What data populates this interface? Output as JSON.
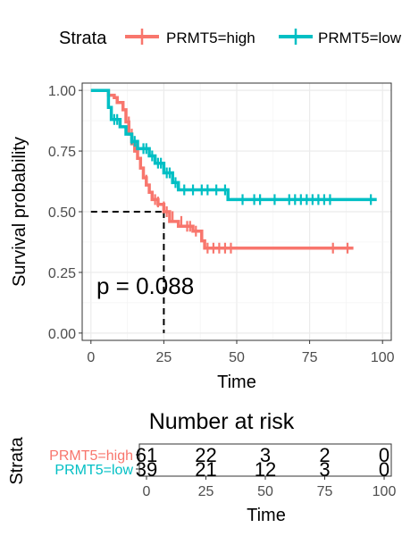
{
  "chart_data": [
    {
      "type": "line",
      "subtype": "kaplan-meier",
      "xlabel": "Time",
      "ylabel": "Survival probability",
      "xlim": [
        -3,
        103
      ],
      "ylim": [
        -0.03,
        1.03
      ],
      "xticks": [
        "0",
        "25",
        "50",
        "75",
        "100"
      ],
      "xtick_values": [
        0,
        25,
        50,
        75,
        100
      ],
      "yticks": [
        "0.00",
        "0.25",
        "0.50",
        "0.75",
        "1.00"
      ],
      "ytick_values": [
        0,
        0.25,
        0.5,
        0.75,
        1.0
      ],
      "grid": true,
      "legend": {
        "title": "Strata",
        "position": "top"
      },
      "annotation": "p = 0.088",
      "median_survival": {
        "y": 0.5,
        "x": 25
      },
      "series": [
        {
          "name": "PRMT5=high",
          "color": "#F8766D",
          "steps": [
            [
              0,
              1.0
            ],
            [
              6,
              1.0
            ],
            [
              6,
              0.98
            ],
            [
              8,
              0.98
            ],
            [
              8,
              0.97
            ],
            [
              9,
              0.97
            ],
            [
              9,
              0.95
            ],
            [
              11,
              0.95
            ],
            [
              11,
              0.92
            ],
            [
              12,
              0.92
            ],
            [
              12,
              0.87
            ],
            [
              13,
              0.87
            ],
            [
              13,
              0.82
            ],
            [
              14,
              0.82
            ],
            [
              14,
              0.78
            ],
            [
              15,
              0.78
            ],
            [
              15,
              0.75
            ],
            [
              16,
              0.75
            ],
            [
              16,
              0.72
            ],
            [
              17,
              0.72
            ],
            [
              17,
              0.68
            ],
            [
              18,
              0.68
            ],
            [
              18,
              0.64
            ],
            [
              19,
              0.64
            ],
            [
              19,
              0.61
            ],
            [
              20,
              0.61
            ],
            [
              20,
              0.58
            ],
            [
              21,
              0.58
            ],
            [
              21,
              0.55
            ],
            [
              23,
              0.55
            ],
            [
              23,
              0.53
            ],
            [
              25,
              0.53
            ],
            [
              25,
              0.5
            ],
            [
              27,
              0.5
            ],
            [
              27,
              0.46
            ],
            [
              30,
              0.46
            ],
            [
              30,
              0.44
            ],
            [
              35,
              0.44
            ],
            [
              35,
              0.42
            ],
            [
              38,
              0.42
            ],
            [
              38,
              0.38
            ],
            [
              39,
              0.38
            ],
            [
              39,
              0.35
            ],
            [
              90,
              0.35
            ]
          ],
          "censor": [
            [
              13,
              0.87
            ],
            [
              14,
              0.82
            ],
            [
              15,
              0.77
            ],
            [
              17,
              0.7
            ],
            [
              19,
              0.63
            ],
            [
              22,
              0.55
            ],
            [
              23,
              0.54
            ],
            [
              25,
              0.52
            ],
            [
              26,
              0.5
            ],
            [
              28,
              0.48
            ],
            [
              31,
              0.46
            ],
            [
              33,
              0.44
            ],
            [
              34,
              0.44
            ],
            [
              36,
              0.42
            ],
            [
              40,
              0.35
            ],
            [
              42,
              0.35
            ],
            [
              44,
              0.35
            ],
            [
              46,
              0.35
            ],
            [
              48,
              0.35
            ],
            [
              83,
              0.35
            ],
            [
              88,
              0.35
            ]
          ],
          "at_risk": [
            61,
            22,
            3,
            2,
            0
          ]
        },
        {
          "name": "PRMT5=low",
          "color": "#00BFC4",
          "steps": [
            [
              0,
              1.0
            ],
            [
              6,
              1.0
            ],
            [
              6,
              0.93
            ],
            [
              7,
              0.93
            ],
            [
              7,
              0.88
            ],
            [
              10,
              0.88
            ],
            [
              10,
              0.85
            ],
            [
              12,
              0.85
            ],
            [
              12,
              0.82
            ],
            [
              14,
              0.82
            ],
            [
              14,
              0.79
            ],
            [
              16,
              0.79
            ],
            [
              16,
              0.76
            ],
            [
              20,
              0.76
            ],
            [
              20,
              0.73
            ],
            [
              22,
              0.73
            ],
            [
              22,
              0.7
            ],
            [
              25,
              0.7
            ],
            [
              25,
              0.66
            ],
            [
              28,
              0.66
            ],
            [
              28,
              0.62
            ],
            [
              30,
              0.62
            ],
            [
              30,
              0.59
            ],
            [
              47,
              0.59
            ],
            [
              47,
              0.55
            ],
            [
              98,
              0.55
            ]
          ],
          "censor": [
            [
              8,
              0.88
            ],
            [
              9,
              0.88
            ],
            [
              14,
              0.8
            ],
            [
              15,
              0.79
            ],
            [
              18,
              0.76
            ],
            [
              19,
              0.76
            ],
            [
              21,
              0.73
            ],
            [
              23,
              0.7
            ],
            [
              24,
              0.7
            ],
            [
              26,
              0.66
            ],
            [
              27,
              0.66
            ],
            [
              29,
              0.62
            ],
            [
              32,
              0.59
            ],
            [
              35,
              0.59
            ],
            [
              38,
              0.59
            ],
            [
              40,
              0.59
            ],
            [
              43,
              0.59
            ],
            [
              46,
              0.59
            ],
            [
              52,
              0.55
            ],
            [
              56,
              0.55
            ],
            [
              58,
              0.55
            ],
            [
              63,
              0.55
            ],
            [
              68,
              0.55
            ],
            [
              70,
              0.55
            ],
            [
              72,
              0.55
            ],
            [
              74,
              0.55
            ],
            [
              76,
              0.55
            ],
            [
              78,
              0.55
            ],
            [
              80,
              0.55
            ],
            [
              82,
              0.55
            ],
            [
              96,
              0.55
            ]
          ],
          "at_risk": [
            39,
            21,
            12,
            3,
            0
          ]
        }
      ]
    },
    {
      "type": "table",
      "title": "Number at risk",
      "xlabel": "Time",
      "ylabel": "Strata",
      "xlim": [
        -3,
        103
      ],
      "xticks": [
        "0",
        "25",
        "50",
        "75",
        "100"
      ],
      "xtick_values": [
        0,
        25,
        50,
        75,
        100
      ],
      "rows": [
        {
          "name": "PRMT5=high",
          "color": "#F8766D",
          "values": [
            "61",
            "22",
            "3",
            "2",
            "0"
          ]
        },
        {
          "name": "PRMT5=low",
          "color": "#00BFC4",
          "values": [
            "39",
            "21",
            "12",
            "3",
            "0"
          ]
        }
      ]
    }
  ]
}
